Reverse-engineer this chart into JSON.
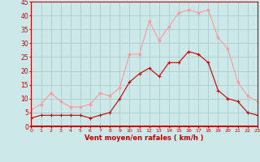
{
  "hours": [
    0,
    1,
    2,
    3,
    4,
    5,
    6,
    7,
    8,
    9,
    10,
    11,
    12,
    13,
    14,
    15,
    16,
    17,
    18,
    19,
    20,
    21,
    22,
    23
  ],
  "mean_wind": [
    3,
    4,
    4,
    4,
    4,
    4,
    3,
    4,
    5,
    10,
    16,
    19,
    21,
    18,
    23,
    23,
    27,
    26,
    23,
    13,
    10,
    9,
    5,
    4
  ],
  "gusts": [
    6,
    8,
    12,
    9,
    7,
    7,
    8,
    12,
    11,
    14,
    26,
    26,
    38,
    31,
    36,
    41,
    42,
    41,
    42,
    32,
    28,
    16,
    11,
    9
  ],
  "bg_color": "#cce8e8",
  "grid_color": "#aacccc",
  "mean_color": "#cc0000",
  "gust_color": "#ff9999",
  "axis_label_color": "#cc0000",
  "tick_color": "#cc0000",
  "xlabel": "Vent moyen/en rafales ( km/h )",
  "ylim": [
    0,
    45
  ],
  "yticks": [
    0,
    5,
    10,
    15,
    20,
    25,
    30,
    35,
    40,
    45
  ],
  "xlim": [
    0,
    23
  ]
}
